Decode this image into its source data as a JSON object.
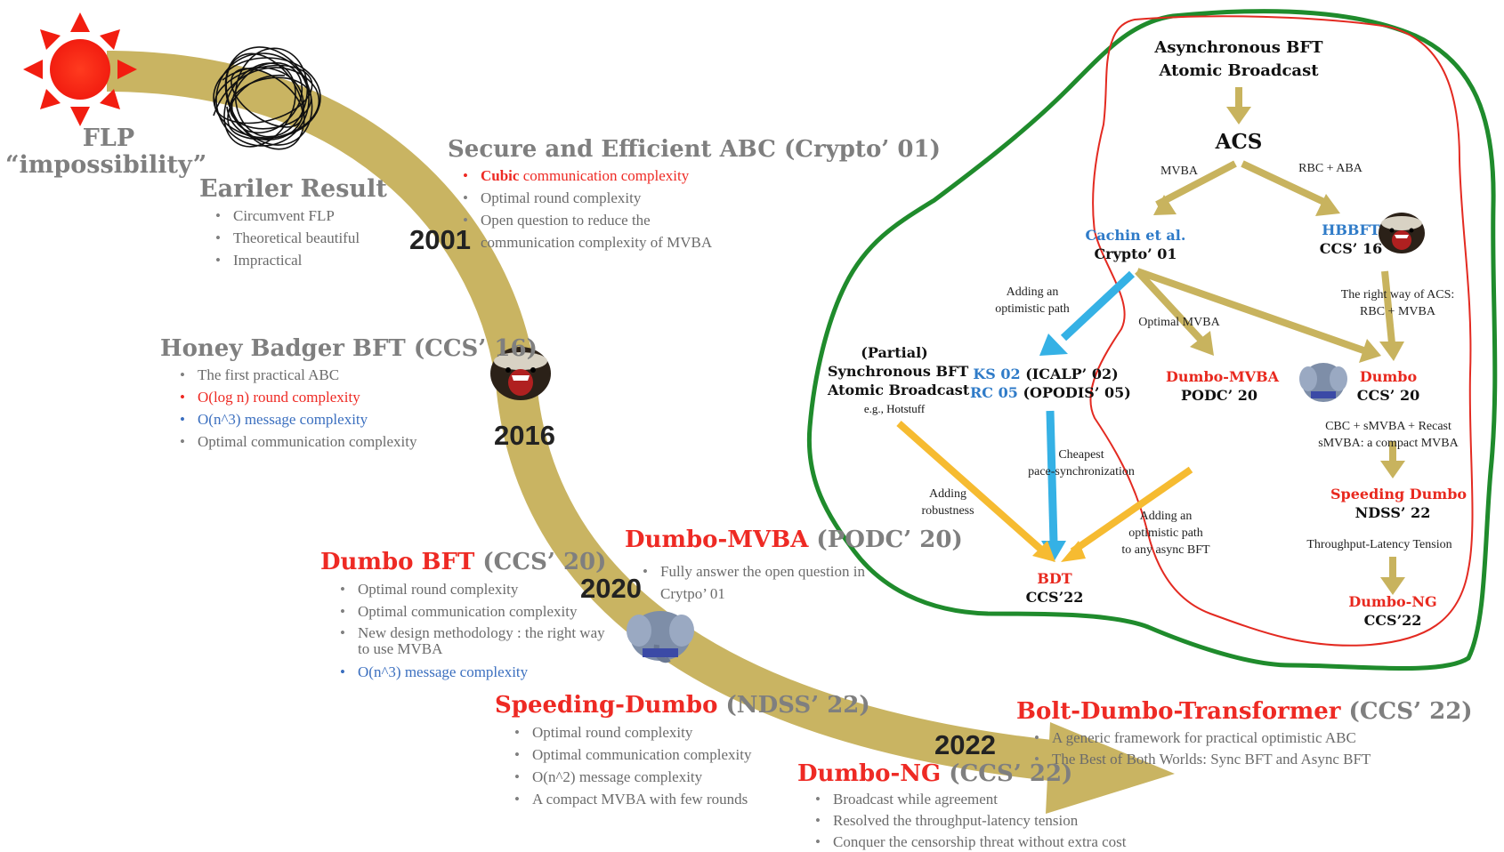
{
  "colors": {
    "timeline_band": "#c9b462",
    "arrow_gold": "#c8b35e",
    "arrow_orange": "#f6bb31",
    "arrow_blue": "#35b1e5",
    "outer_blob": "#1f8b2c",
    "inner_blob": "#e32a21",
    "highlight_red": "#ee2a24",
    "highlight_blue": "#3b6fbf",
    "text_gray": "#7f7f7f"
  },
  "icons": [
    "sun-icon",
    "scribble-icon",
    "honey-badger-icon",
    "dumbo-elephant-icon"
  ],
  "flp": {
    "line1": "FLP",
    "line2": "“impossibility”"
  },
  "earlier": {
    "title": "Eariler Result",
    "bullets": [
      "Circumvent  FLP",
      "Theoretical beautiful",
      " Impractical"
    ]
  },
  "years": {
    "y2001": "2001",
    "y2016": "2016",
    "y2020": "2020",
    "y2022": "2022"
  },
  "crypto01": {
    "title": "Secure and Efficient ABC (Crypto’ 01)",
    "b1_red": "Cubic",
    "b1_rest": " communication complexity",
    "b2": "Optimal round complexity",
    "b3": "Open question to reduce the",
    "b3_cont": " communication complexity  of MVBA"
  },
  "hbbft": {
    "title": "Honey Badger BFT (CCS’ 16)",
    "bullets": [
      "The first practical ABC",
      "O(log n) round complexity",
      "O(n^3) message complexity",
      "Optimal communication complexity"
    ]
  },
  "dumbo_mvba": {
    "title_red": "Dumbo-MVBA",
    "title_rest": " (PODC’ 20)",
    "b1": "Fully  answer the open question in",
    "b1_cont": "Crytpo’ 01"
  },
  "dumbo_bft": {
    "title_red": "Dumbo BFT",
    "title_rest": " (CCS’ 20)",
    "bullets": [
      "Optimal round complexity",
      "Optimal communication complexity",
      "New design methodology :  the right way to use MVBA",
      "O(n^3) message complexity"
    ]
  },
  "speeding": {
    "title_red": "Speeding-Dumbo",
    "title_rest": " (NDSS’ 22)",
    "bullets": [
      "Optimal round complexity",
      "Optimal communication complexity",
      "O(n^2) message complexity",
      "A compact MVBA with few rounds"
    ]
  },
  "dumbo_ng": {
    "title_red": "Dumbo-NG",
    "title_rest": " (CCS’ 22)",
    "bullets": [
      "Broadcast while agreement",
      "Resolved the throughput-latency tension",
      "Conquer the censorship threat without extra cost"
    ]
  },
  "bolt": {
    "title_red": "Bolt-Dumbo-Transformer",
    "title_rest": " (CCS’ 22)",
    "bullets": [
      "A generic framework for practical optimistic ABC",
      "The Best of Both Worlds: Sync BFT and Async BFT"
    ]
  },
  "diagram": {
    "top": {
      "line1": "Asynchronous BFT",
      "line2": "Atomic Broadcast"
    },
    "acs": "ACS",
    "mvba": "MVBA",
    "rbc_aba": "RBC  +  ABA",
    "cachin": {
      "line1": "Cachin et al.",
      "line2": "Crypto’ 01"
    },
    "hbbft": {
      "line1": "HBBFT",
      "line2": "CCS’ 16"
    },
    "adding_opt": {
      "line1": "Adding  an",
      "line2": "optimistic path"
    },
    "optimal_mvba": "Optimal MVBA",
    "right_way": {
      "line1": "The right way of  ACS:",
      "line2": "RBC  +  MVBA"
    },
    "partial": {
      "line1": "(Partial)",
      "line2": "Synchronous BFT",
      "line3": "Atomic Broadcast",
      "line4": "e.g., Hotstuff"
    },
    "ks": {
      "blue": "KS 02",
      "rest": " (ICALP’ 02)"
    },
    "rc": {
      "blue": "RC 05",
      "rest": " (OPODIS’ 05)"
    },
    "dumbo_mvba": {
      "line1": "Dumbo-MVBA",
      "line2": "PODC’ 20"
    },
    "dumbo": {
      "line1": "Dumbo",
      "line2": "CCS’ 20"
    },
    "cbc": {
      "line1": "CBC + sMVBA + Recast",
      "line2": "sMVBA: a compact MVBA"
    },
    "cheapest": {
      "line1": "Cheapest",
      "line2": "pace-synchronization"
    },
    "adding_rob": {
      "line1": "Adding",
      "line2": "robustness"
    },
    "adding_opt2": {
      "line1": "Adding an",
      "line2": "optimistic path",
      "line3": "to any async BFT"
    },
    "speeding": {
      "line1": "Speeding Dumbo",
      "line2": "NDSS’ 22"
    },
    "tl": "Throughput-Latency Tension",
    "bdt": {
      "line1": "BDT",
      "line2": "CCS’22"
    },
    "ng": {
      "line1": "Dumbo-NG",
      "line2": "CCS’22"
    }
  }
}
